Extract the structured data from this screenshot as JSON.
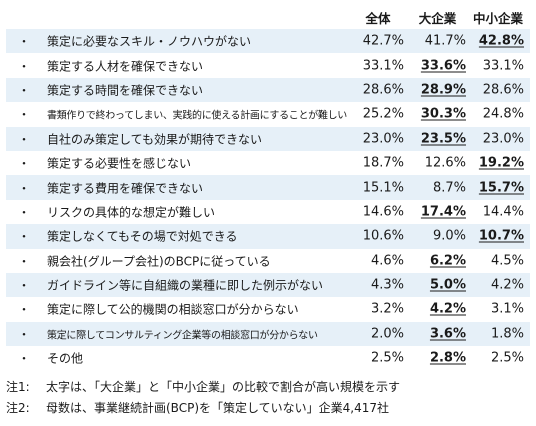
{
  "header": {
    "all": "全体",
    "large": "大企業",
    "sme": "中小企業"
  },
  "rows": [
    {
      "bullet": "・",
      "label": "策定に必要なスキル・ノウハウがない",
      "all": "42.7%",
      "large": "41.7%",
      "sme": "42.8%",
      "bold": "sme"
    },
    {
      "bullet": "・",
      "label": "策定する人材を確保できない",
      "all": "33.1%",
      "large": "33.6%",
      "sme": "33.1%",
      "bold": "large"
    },
    {
      "bullet": "・",
      "label": "策定する時間を確保できない",
      "all": "28.6%",
      "large": "28.9%",
      "sme": "28.6%",
      "bold": "large"
    },
    {
      "bullet": "・",
      "label": "書類作りで終わってしまい、実践的に使える計画にすることが難しい",
      "all": "25.2%",
      "large": "30.3%",
      "sme": "24.8%",
      "bold": "large",
      "small": true
    },
    {
      "bullet": "・",
      "label": "自社のみ策定しても効果が期待できない",
      "all": "23.0%",
      "large": "23.5%",
      "sme": "23.0%",
      "bold": "large"
    },
    {
      "bullet": "・",
      "label": "策定する必要性を感じない",
      "all": "18.7%",
      "large": "12.6%",
      "sme": "19.2%",
      "bold": "sme"
    },
    {
      "bullet": "・",
      "label": "策定する費用を確保できない",
      "all": "15.1%",
      "large": "8.7%",
      "sme": "15.7%",
      "bold": "sme"
    },
    {
      "bullet": "・",
      "label": "リスクの具体的な想定が難しい",
      "all": "14.6%",
      "large": "17.4%",
      "sme": "14.4%",
      "bold": "large"
    },
    {
      "bullet": "・",
      "label": "策定しなくてもその場で対処できる",
      "all": "10.6%",
      "large": "9.0%",
      "sme": "10.7%",
      "bold": "sme"
    },
    {
      "bullet": "・",
      "label": "親会社(グループ会社)のBCPに従っている",
      "all": "4.6%",
      "large": "6.2%",
      "sme": "4.5%",
      "bold": "large"
    },
    {
      "bullet": "・",
      "label": "ガイドライン等に自組織の業種に即した例示がない",
      "all": "4.3%",
      "large": "5.0%",
      "sme": "4.2%",
      "bold": "large"
    },
    {
      "bullet": "・",
      "label": "策定に際して公的機関の相談窓口が分からない",
      "all": "3.2%",
      "large": "4.2%",
      "sme": "3.1%",
      "bold": "large"
    },
    {
      "bullet": "・",
      "label": "策定に際してコンサルティング企業等の相談窓口が分からない",
      "all": "2.0%",
      "large": "3.6%",
      "sme": "1.8%",
      "bold": "large",
      "small": true
    },
    {
      "bullet": "・",
      "label": "その他",
      "all": "2.5%",
      "large": "2.8%",
      "sme": "2.5%",
      "bold": "large"
    }
  ],
  "notes": [
    {
      "num": "注1:",
      "text": "太字は、「大企業」と「中小企業」の比較で割合が高い規模を示す"
    },
    {
      "num": "注2:",
      "text": "母数は、事業継続計画(BCP)を「策定していない」企業4,417社"
    }
  ]
}
